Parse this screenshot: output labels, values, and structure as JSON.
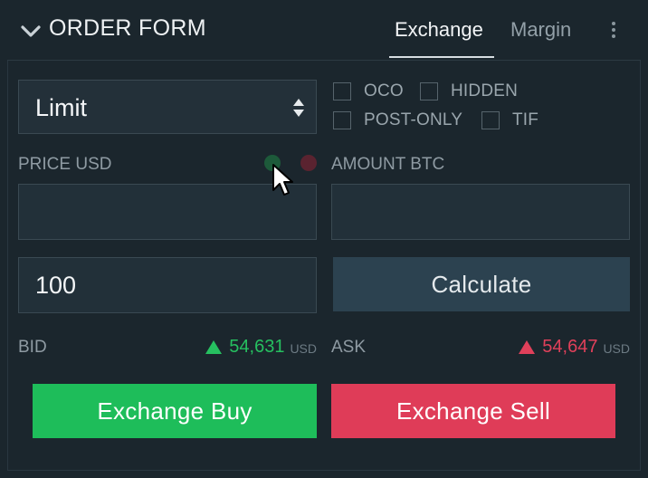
{
  "header": {
    "title": "ORDER FORM",
    "tabs": [
      {
        "label": "Exchange",
        "active": true
      },
      {
        "label": "Margin",
        "active": false
      }
    ]
  },
  "order_type": {
    "value": "Limit"
  },
  "options": [
    {
      "label": "OCO",
      "checked": false
    },
    {
      "label": "HIDDEN",
      "checked": false
    },
    {
      "label": "POST-ONLY",
      "checked": false
    },
    {
      "label": "TIF",
      "checked": false
    }
  ],
  "price": {
    "label": "PRICE USD",
    "value": ""
  },
  "amount": {
    "label": "AMOUNT BTC",
    "value": ""
  },
  "quantity": {
    "value": "100"
  },
  "calculate": {
    "label": "Calculate"
  },
  "bid": {
    "label": "BID",
    "price": "54,631",
    "unit": "USD"
  },
  "ask": {
    "label": "ASK",
    "price": "54,647",
    "unit": "USD"
  },
  "actions": {
    "buy_label": "Exchange Buy",
    "sell_label": "Exchange Sell"
  },
  "colors": {
    "background": "#1b262d",
    "buy": "#1ebd5a",
    "sell": "#df3c58",
    "bid_text": "#26c060",
    "ask_text": "#e0405a",
    "calculate_bg": "#2c4250"
  },
  "icons": [
    "chevron-down-icon",
    "kebab-menu-icon",
    "select-arrows-icon",
    "up-triangle-icon",
    "mouse-cursor-icon"
  ]
}
